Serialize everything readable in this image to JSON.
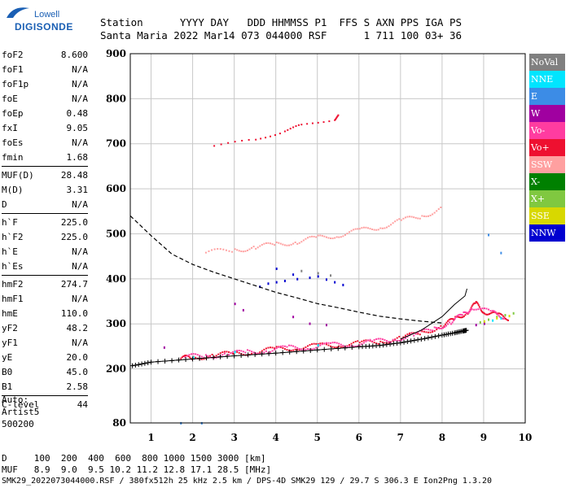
{
  "logo": {
    "top": "Lowell",
    "bottom": "DIGISONDE"
  },
  "header": {
    "line1": "Station      YYYY DAY   DDD HHMMSS P1  FFS S AXN PPS IGA PS",
    "line2": "Santa Maria 2022 Mar14 073 044000 RSF      1 711 100 03+ 36"
  },
  "params": {
    "group1": [
      {
        "label": "foF2",
        "value": "8.600"
      },
      {
        "label": "foF1",
        "value": "N/A"
      },
      {
        "label": "foF1p",
        "value": "N/A"
      },
      {
        "label": "foE",
        "value": "N/A"
      },
      {
        "label": "foEp",
        "value": "0.48"
      },
      {
        "label": "fxI",
        "value": "9.05"
      },
      {
        "label": "foEs",
        "value": "N/A"
      },
      {
        "label": "fmin",
        "value": "1.68"
      }
    ],
    "group2": [
      {
        "label": "MUF(D)",
        "value": "28.48"
      },
      {
        "label": "M(D)",
        "value": "3.31"
      },
      {
        "label": "D",
        "value": "N/A"
      }
    ],
    "group3": [
      {
        "label": "h`F",
        "value": "225.0"
      },
      {
        "label": "h`F2",
        "value": "225.0"
      },
      {
        "label": "h`E",
        "value": "N/A"
      },
      {
        "label": "h`Es",
        "value": "N/A"
      }
    ],
    "group4": [
      {
        "label": "hmF2",
        "value": "274.7"
      },
      {
        "label": "hmF1",
        "value": "N/A"
      },
      {
        "label": "hmE",
        "value": "110.0"
      },
      {
        "label": "yF2",
        "value": "48.2"
      },
      {
        "label": "yF1",
        "value": "N/A"
      },
      {
        "label": "yE",
        "value": "20.0"
      },
      {
        "label": "B0",
        "value": "45.0"
      },
      {
        "label": "B1",
        "value": "2.58"
      }
    ],
    "group5": [
      {
        "label": "C-level",
        "value": "44"
      }
    ]
  },
  "auto": {
    "line1": "Auto:",
    "line2": "Artist5",
    "line3": "500200"
  },
  "legend": [
    {
      "label": "NoVal",
      "color": "#808080"
    },
    {
      "label": "NNE",
      "color": "#00e5ff"
    },
    {
      "label": "E",
      "color": "#3c8ce6"
    },
    {
      "label": "W",
      "color": "#a000a0"
    },
    {
      "label": "Vo-",
      "color": "#ff3ca0"
    },
    {
      "label": "Vo+",
      "color": "#ee1030"
    },
    {
      "label": "SSW",
      "color": "#ffa0a0"
    },
    {
      "label": "X-",
      "color": "#008000"
    },
    {
      "label": "X+",
      "color": "#80c840"
    },
    {
      "label": "SSE",
      "color": "#d8d800"
    },
    {
      "label": "NNW",
      "color": "#0000d0"
    }
  ],
  "footer": {
    "line1": "D     100  200  400  600  800 1000 1500 3000 [km]",
    "line2": "MUF   8.9  9.0  9.5 10.2 11.2 12.8 17.1 28.5 [MHz]",
    "line3": "SMK29_2022073044000.RSF / 380fx512h 25 kHz 2.5 km / DPS-4D SMK29 129 / 29.7 S 306.3 E Ion2Png 1.3.20"
  },
  "chart_data": {
    "type": "scatter",
    "title": "",
    "xlabel": "",
    "ylabel": "",
    "xlim": [
      0.5,
      10
    ],
    "ylim": [
      80,
      900
    ],
    "x_ticks": [
      1,
      2,
      3,
      4,
      5,
      6,
      7,
      8,
      9,
      10
    ],
    "y_ticks": [
      80,
      200,
      300,
      400,
      500,
      600,
      700,
      800,
      900
    ],
    "grid": true,
    "legend_position": "right",
    "series": [
      {
        "name": "Vo+",
        "color": "#ee1030",
        "points": [
          [
            1.7,
            225
          ],
          [
            2.0,
            227
          ],
          [
            2.5,
            232
          ],
          [
            3.0,
            236
          ],
          [
            3.5,
            240
          ],
          [
            4.0,
            245
          ],
          [
            4.5,
            250
          ],
          [
            5.0,
            252
          ],
          [
            5.5,
            256
          ],
          [
            6.0,
            258
          ],
          [
            6.5,
            263
          ],
          [
            7.0,
            270
          ],
          [
            7.5,
            282
          ],
          [
            8.0,
            298
          ],
          [
            8.3,
            312
          ],
          [
            8.6,
            330
          ],
          [
            8.8,
            345
          ],
          [
            9.0,
            330
          ],
          [
            9.3,
            320
          ],
          [
            9.6,
            315
          ]
        ]
      },
      {
        "name": "Vo-",
        "color": "#ff3ca0",
        "points": [
          [
            1.8,
            228
          ],
          [
            2.3,
            231
          ],
          [
            2.8,
            234
          ],
          [
            3.3,
            239
          ],
          [
            3.8,
            243
          ],
          [
            4.3,
            248
          ],
          [
            4.8,
            251
          ],
          [
            5.3,
            254
          ],
          [
            5.8,
            257
          ],
          [
            6.3,
            261
          ],
          [
            6.8,
            267
          ],
          [
            7.3,
            277
          ],
          [
            7.8,
            291
          ],
          [
            8.2,
            306
          ],
          [
            8.5,
            322
          ],
          [
            8.7,
            340
          ],
          [
            9.2,
            325
          ],
          [
            9.5,
            318
          ]
        ]
      },
      {
        "name": "SSW",
        "color": "#ffa0a0",
        "points": [
          [
            2.3,
            460
          ],
          [
            3.0,
            466
          ],
          [
            3.5,
            472
          ],
          [
            4.0,
            478
          ],
          [
            4.5,
            485
          ],
          [
            5.0,
            492
          ],
          [
            5.5,
            500
          ],
          [
            6.0,
            508
          ],
          [
            6.5,
            518
          ],
          [
            7.0,
            530
          ],
          [
            7.5,
            542
          ],
          [
            8.0,
            558
          ]
        ]
      },
      {
        "name": "NNW",
        "color": "#0000d0",
        "points": [
          [
            3.6,
            385
          ],
          [
            3.8,
            392
          ],
          [
            4.0,
            395
          ],
          [
            4.2,
            398
          ],
          [
            4.5,
            402
          ],
          [
            4.8,
            405
          ],
          [
            5.0,
            408
          ],
          [
            5.2,
            401
          ],
          [
            5.4,
            395
          ],
          [
            5.6,
            389
          ],
          [
            4.0,
            425
          ],
          [
            4.4,
            412
          ]
        ]
      },
      {
        "name": "W",
        "color": "#a000a0",
        "points": [
          [
            1.3,
            250
          ],
          [
            3.0,
            347
          ],
          [
            3.2,
            333
          ],
          [
            4.4,
            318
          ],
          [
            4.8,
            303
          ],
          [
            5.2,
            300
          ],
          [
            8.8,
            300
          ],
          [
            9.0,
            303
          ]
        ]
      },
      {
        "name": "X+",
        "color": "#80c840",
        "points": [
          [
            8.9,
            306
          ],
          [
            9.1,
            312
          ],
          [
            9.3,
            318
          ],
          [
            9.5,
            322
          ],
          [
            9.7,
            326
          ]
        ]
      },
      {
        "name": "SSE",
        "color": "#d8d800",
        "points": [
          [
            9.0,
            308
          ],
          [
            9.3,
            315
          ],
          [
            9.6,
            320
          ]
        ]
      },
      {
        "name": "NNE",
        "color": "#00e5ff",
        "points": [
          [
            2.0,
            228
          ],
          [
            3.0,
            240
          ],
          [
            5.0,
            255
          ],
          [
            9.2,
            310
          ],
          [
            9.4,
            315
          ]
        ]
      },
      {
        "name": "E",
        "color": "#3c8ce6",
        "points": [
          [
            1.7,
            82
          ],
          [
            2.2,
            82
          ],
          [
            9.1,
            500
          ],
          [
            9.4,
            460
          ]
        ]
      },
      {
        "name": "NoVal",
        "color": "#808080",
        "points": [
          [
            4.6,
            420
          ],
          [
            5.0,
            415
          ],
          [
            5.3,
            410
          ]
        ]
      }
    ],
    "echo_bands": [
      {
        "color": "#ee1030",
        "points": [
          [
            2.5,
            697
          ],
          [
            3.5,
            710
          ],
          [
            4.2,
            731
          ],
          [
            4.6,
            742
          ],
          [
            5.4,
            757
          ],
          [
            5.5,
            764
          ]
        ]
      }
    ],
    "virtual_height_trace": [
      [
        0.55,
        207
      ],
      [
        1.0,
        215
      ],
      [
        2.0,
        222
      ],
      [
        3.0,
        229
      ],
      [
        4.0,
        235
      ],
      [
        5.0,
        242
      ],
      [
        6.0,
        249
      ],
      [
        6.5,
        252
      ],
      [
        7.0,
        258
      ],
      [
        7.5,
        266
      ],
      [
        8.0,
        275
      ],
      [
        8.3,
        280
      ],
      [
        8.5,
        284
      ],
      [
        8.6,
        286
      ]
    ],
    "profile_curve": [
      [
        0.5,
        540
      ],
      [
        1.0,
        496
      ],
      [
        1.5,
        455
      ],
      [
        2.0,
        432
      ],
      [
        2.5,
        415
      ],
      [
        3.0,
        400
      ],
      [
        3.5,
        385
      ],
      [
        4.0,
        370
      ],
      [
        4.5,
        358
      ],
      [
        5.0,
        345
      ],
      [
        5.5,
        336
      ],
      [
        6.0,
        326
      ],
      [
        6.5,
        317
      ],
      [
        7.0,
        311
      ],
      [
        7.5,
        306
      ],
      [
        8.0,
        302
      ]
    ],
    "profile_solid": [
      [
        7.0,
        266
      ],
      [
        7.5,
        286
      ],
      [
        8.0,
        316
      ],
      [
        8.3,
        343
      ],
      [
        8.55,
        362
      ],
      [
        8.6,
        378
      ]
    ]
  }
}
